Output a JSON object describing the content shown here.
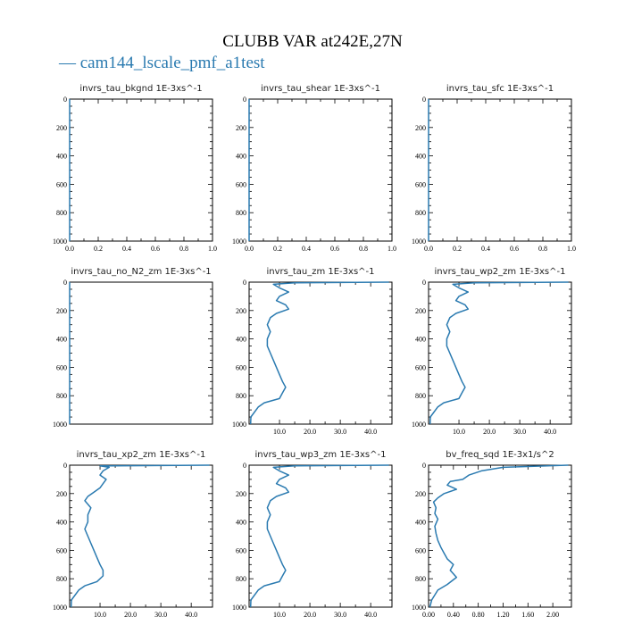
{
  "figure": {
    "title": "CLUBB VAR at242E,27N",
    "legend_label": "cam144_lscale_pmf_a1test",
    "line_color": "#2a7ab0"
  },
  "chart_data": [
    {
      "type": "line",
      "title": "invrs_tau_bkgnd",
      "units": "1E-3xs^-1",
      "xlim": [
        0,
        1.0
      ],
      "ylim": [
        1000,
        0
      ],
      "xticks": [
        0.0,
        0.2,
        0.4,
        0.6,
        0.8,
        1.0
      ],
      "xtick_labels": [
        "0.0",
        "0.2",
        "0.4",
        "0.6",
        "0.8",
        "1.0"
      ],
      "yticks": [
        0,
        200,
        400,
        600,
        800,
        1000
      ],
      "ytick_labels": [
        "0",
        "200",
        "400",
        "600",
        "800",
        "1000"
      ],
      "series": [
        {
          "x": [
            0,
            0
          ],
          "y": [
            0,
            1000
          ]
        }
      ]
    },
    {
      "type": "line",
      "title": "invrs_tau_shear",
      "units": "1E-3xs^-1",
      "xlim": [
        0,
        1.0
      ],
      "ylim": [
        1000,
        0
      ],
      "xticks": [
        0.0,
        0.2,
        0.4,
        0.6,
        0.8,
        1.0
      ],
      "xtick_labels": [
        "0.0",
        "0.2",
        "0.4",
        "0.6",
        "0.8",
        "1.0"
      ],
      "yticks": [
        0,
        200,
        400,
        600,
        800,
        1000
      ],
      "ytick_labels": [
        "0",
        "200",
        "400",
        "600",
        "800",
        "1000"
      ],
      "series": [
        {
          "x": [
            0,
            0
          ],
          "y": [
            0,
            1000
          ]
        }
      ]
    },
    {
      "type": "line",
      "title": "invrs_tau_sfc",
      "units": "1E-3xs^-1",
      "xlim": [
        0,
        1.0
      ],
      "ylim": [
        1000,
        0
      ],
      "xticks": [
        0.0,
        0.2,
        0.4,
        0.6,
        0.8,
        1.0
      ],
      "xtick_labels": [
        "0.0",
        "0.2",
        "0.4",
        "0.6",
        "0.8",
        "1.0"
      ],
      "yticks": [
        0,
        200,
        400,
        600,
        800,
        1000
      ],
      "ytick_labels": [
        "0",
        "200",
        "400",
        "600",
        "800",
        "1000"
      ],
      "series": [
        {
          "x": [
            0,
            0
          ],
          "y": [
            0,
            1000
          ]
        }
      ]
    },
    {
      "type": "line",
      "title": "invrs_tau_no_N2_zm",
      "units": "1E-3xs^-1",
      "xlim": [
        0,
        1.0
      ],
      "ylim": [
        1000,
        0
      ],
      "xticks": [],
      "xtick_labels": [],
      "yticks": [
        0,
        200,
        400,
        600,
        800,
        1000
      ],
      "ytick_labels": [
        "0",
        "200",
        "400",
        "600",
        "800",
        "1000"
      ],
      "series": [
        {
          "x": [
            0,
            0
          ],
          "y": [
            0,
            1000
          ]
        }
      ]
    },
    {
      "type": "line",
      "title": "invrs_tau_zm",
      "units": "1E-3xs^-1",
      "xlim": [
        0,
        47
      ],
      "ylim": [
        1000,
        0
      ],
      "xticks": [
        10,
        20,
        30,
        40
      ],
      "xtick_labels": [
        "10.0",
        "20.0",
        "30.0",
        "40.0"
      ],
      "yticks": [
        0,
        200,
        400,
        600,
        800,
        1000
      ],
      "ytick_labels": [
        "0",
        "200",
        "400",
        "600",
        "800",
        "1000"
      ],
      "series": [
        {
          "x": [
            46,
            15,
            8,
            10,
            13,
            10,
            9,
            12,
            13,
            9,
            7,
            6,
            7,
            6,
            6,
            7,
            8,
            9,
            10,
            11,
            12,
            11,
            10,
            5,
            3,
            0.6,
            0.5
          ],
          "y": [
            0,
            5,
            15,
            40,
            70,
            100,
            130,
            160,
            190,
            220,
            250,
            300,
            350,
            400,
            450,
            500,
            550,
            600,
            650,
            700,
            740,
            780,
            820,
            850,
            880,
            950,
            1000
          ]
        }
      ]
    },
    {
      "type": "line",
      "title": "invrs_tau_wp2_zm",
      "units": "1E-3xs^-1",
      "xlim": [
        0,
        47
      ],
      "ylim": [
        1000,
        0
      ],
      "xticks": [
        10,
        20,
        30,
        40
      ],
      "xtick_labels": [
        "10.0",
        "20.0",
        "30.0",
        "40.0"
      ],
      "yticks": [
        0,
        200,
        400,
        600,
        800,
        1000
      ],
      "ytick_labels": [
        "0",
        "200",
        "400",
        "600",
        "800",
        "1000"
      ],
      "series": [
        {
          "x": [
            46,
            15,
            8,
            10,
            13,
            10,
            9,
            12,
            13,
            9,
            7,
            6,
            7,
            6,
            6,
            7,
            8,
            9,
            10,
            11,
            12,
            11,
            10,
            5,
            3,
            0.6,
            0.5
          ],
          "y": [
            0,
            5,
            15,
            40,
            70,
            100,
            130,
            160,
            190,
            220,
            250,
            300,
            350,
            400,
            450,
            500,
            550,
            600,
            650,
            700,
            740,
            780,
            820,
            850,
            880,
            950,
            1000
          ]
        }
      ]
    },
    {
      "type": "line",
      "title": "invrs_tau_xp2_zm",
      "units": "1E-3xs^-1",
      "xlim": [
        0,
        47
      ],
      "ylim": [
        1000,
        0
      ],
      "xticks": [
        10,
        20,
        30,
        40
      ],
      "xtick_labels": [
        "10.0",
        "20.0",
        "30.0",
        "40.0"
      ],
      "yticks": [
        0,
        200,
        400,
        600,
        800,
        1000
      ],
      "ytick_labels": [
        "0",
        "200",
        "400",
        "600",
        "800",
        "1000"
      ],
      "series": [
        {
          "x": [
            46,
            10,
            13,
            11,
            10,
            12,
            11,
            10,
            8,
            6,
            5,
            7,
            6,
            6,
            5,
            6,
            7,
            8,
            9,
            10,
            11,
            11,
            9,
            5,
            3,
            0.6,
            0.5
          ],
          "y": [
            0,
            5,
            15,
            40,
            70,
            100,
            130,
            160,
            190,
            220,
            250,
            300,
            350,
            400,
            450,
            500,
            550,
            600,
            650,
            700,
            740,
            780,
            820,
            850,
            880,
            950,
            1000
          ]
        }
      ]
    },
    {
      "type": "line",
      "title": "invrs_tau_wp3_zm",
      "units": "1E-3xs^-1",
      "xlim": [
        0,
        47
      ],
      "ylim": [
        1000,
        0
      ],
      "xticks": [
        10,
        20,
        30,
        40
      ],
      "xtick_labels": [
        "10.0",
        "20.0",
        "30.0",
        "40.0"
      ],
      "yticks": [
        0,
        200,
        400,
        600,
        800,
        1000
      ],
      "ytick_labels": [
        "0",
        "200",
        "400",
        "600",
        "800",
        "1000"
      ],
      "series": [
        {
          "x": [
            46,
            15,
            8,
            10,
            13,
            10,
            9,
            12,
            13,
            9,
            7,
            6,
            7,
            6,
            6,
            7,
            8,
            9,
            10,
            11,
            12,
            11,
            10,
            5,
            3,
            0.6,
            0.5
          ],
          "y": [
            0,
            5,
            15,
            40,
            70,
            100,
            130,
            160,
            190,
            220,
            250,
            300,
            350,
            400,
            450,
            500,
            550,
            600,
            650,
            700,
            740,
            780,
            820,
            850,
            880,
            950,
            1000
          ]
        }
      ]
    },
    {
      "type": "line",
      "title": "bv_freq_sqd",
      "units": "1E-3x1/s^2",
      "xlim": [
        0,
        2.3
      ],
      "ylim": [
        1000,
        0
      ],
      "xticks": [
        0,
        0.4,
        0.8,
        1.2,
        1.6,
        2.0
      ],
      "xtick_labels": [
        "0.00",
        "0.40",
        "0.80",
        "1.20",
        "1.60",
        "2.00"
      ],
      "yticks": [
        0,
        200,
        400,
        600,
        800,
        1000
      ],
      "ytick_labels": [
        "0",
        "200",
        "400",
        "600",
        "800",
        "1000"
      ],
      "series": [
        {
          "x": [
            2.25,
            1.2,
            0.85,
            0.65,
            0.55,
            0.35,
            0.3,
            0.45,
            0.25,
            0.15,
            0.08,
            0.12,
            0.1,
            0.15,
            0.1,
            0.12,
            0.15,
            0.2,
            0.25,
            0.3,
            0.4,
            0.35,
            0.45,
            0.3,
            0.15,
            0.05,
            0.02
          ],
          "y": [
            0,
            15,
            40,
            70,
            100,
            115,
            140,
            170,
            200,
            230,
            260,
            300,
            340,
            380,
            430,
            480,
            530,
            580,
            620,
            660,
            700,
            740,
            790,
            840,
            880,
            950,
            1000
          ]
        }
      ]
    }
  ]
}
